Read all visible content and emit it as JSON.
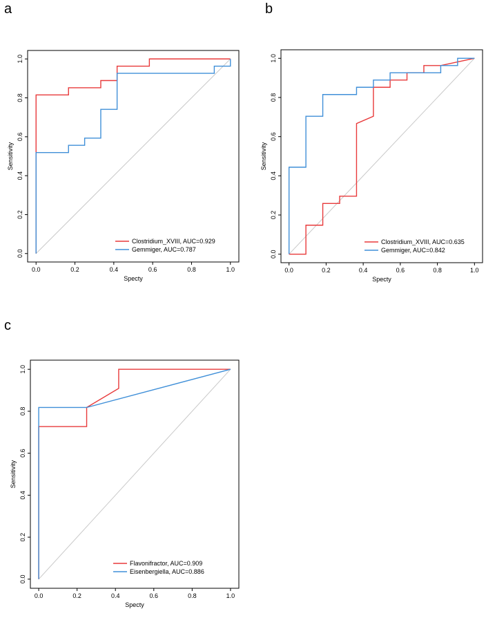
{
  "panels": {
    "a": {
      "letter": "a"
    },
    "b": {
      "letter": "b"
    },
    "c": {
      "letter": "c"
    }
  },
  "chart_data": [
    {
      "id": "a",
      "type": "line",
      "subtype": "roc",
      "xlabel": "Specty",
      "ylabel": "Sensitivity",
      "xlim": [
        0,
        1
      ],
      "ylim": [
        0,
        1
      ],
      "xticks": [
        "0.0",
        "0.2",
        "0.4",
        "0.6",
        "0.8",
        "1.0"
      ],
      "yticks": [
        "0.0",
        "0.2",
        "0.4",
        "0.6",
        "0.8",
        "1.0"
      ],
      "legend_position": "bottom-right",
      "diagonal": true,
      "series": [
        {
          "name": "Clostridium_XVIII, AUC=0.929",
          "color": "#e8393a",
          "points": [
            [
              0,
              0
            ],
            [
              0,
              0.815
            ],
            [
              0.167,
              0.815
            ],
            [
              0.167,
              0.852
            ],
            [
              0.333,
              0.852
            ],
            [
              0.333,
              0.889
            ],
            [
              0.417,
              0.889
            ],
            [
              0.417,
              0.963
            ],
            [
              0.583,
              0.963
            ],
            [
              0.583,
              1.0
            ],
            [
              1.0,
              1.0
            ]
          ]
        },
        {
          "name": "Gemmiger, AUC=0.787",
          "color": "#3f8fd8",
          "points": [
            [
              0,
              0
            ],
            [
              0,
              0.519
            ],
            [
              0.167,
              0.519
            ],
            [
              0.167,
              0.556
            ],
            [
              0.25,
              0.556
            ],
            [
              0.25,
              0.593
            ],
            [
              0.333,
              0.593
            ],
            [
              0.333,
              0.741
            ],
            [
              0.417,
              0.741
            ],
            [
              0.417,
              0.926
            ],
            [
              0.917,
              0.926
            ],
            [
              0.917,
              0.963
            ],
            [
              1.0,
              0.963
            ],
            [
              1.0,
              1.0
            ]
          ]
        }
      ]
    },
    {
      "id": "b",
      "type": "line",
      "subtype": "roc",
      "xlabel": "Specty",
      "ylabel": "Sensitivity",
      "xlim": [
        0,
        1
      ],
      "ylim": [
        0,
        1
      ],
      "xticks": [
        "0.0",
        "0.2",
        "0.4",
        "0.6",
        "0.8",
        "1.0"
      ],
      "yticks": [
        "0.0",
        "0.2",
        "0.4",
        "0.6",
        "0.8",
        "1.0"
      ],
      "legend_position": "bottom-right",
      "diagonal": true,
      "series": [
        {
          "name": "Clostridium_XVIII, AUC=0.635",
          "color": "#e8393a",
          "points": [
            [
              0,
              0
            ],
            [
              0.091,
              0
            ],
            [
              0.091,
              0.148
            ],
            [
              0.182,
              0.148
            ],
            [
              0.182,
              0.259
            ],
            [
              0.273,
              0.259
            ],
            [
              0.273,
              0.296
            ],
            [
              0.364,
              0.296
            ],
            [
              0.364,
              0.667
            ],
            [
              0.455,
              0.704
            ],
            [
              0.455,
              0.852
            ],
            [
              0.545,
              0.852
            ],
            [
              0.545,
              0.889
            ],
            [
              0.636,
              0.889
            ],
            [
              0.636,
              0.926
            ],
            [
              0.727,
              0.926
            ],
            [
              0.727,
              0.963
            ],
            [
              0.818,
              0.963
            ],
            [
              1.0,
              1.0
            ]
          ]
        },
        {
          "name": "Gemmiger, AUC=0.842",
          "color": "#3f8fd8",
          "points": [
            [
              0,
              0
            ],
            [
              0,
              0.444
            ],
            [
              0.091,
              0.444
            ],
            [
              0.091,
              0.704
            ],
            [
              0.182,
              0.704
            ],
            [
              0.182,
              0.815
            ],
            [
              0.364,
              0.815
            ],
            [
              0.364,
              0.852
            ],
            [
              0.455,
              0.852
            ],
            [
              0.455,
              0.889
            ],
            [
              0.545,
              0.889
            ],
            [
              0.545,
              0.926
            ],
            [
              0.818,
              0.926
            ],
            [
              0.818,
              0.963
            ],
            [
              0.909,
              0.963
            ],
            [
              0.909,
              1.0
            ],
            [
              1.0,
              1.0
            ]
          ]
        }
      ]
    },
    {
      "id": "c",
      "type": "line",
      "subtype": "roc",
      "xlabel": "Specty",
      "ylabel": "Sensitivity",
      "xlim": [
        0,
        1
      ],
      "ylim": [
        0,
        1
      ],
      "xticks": [
        "0.0",
        "0.2",
        "0.4",
        "0.6",
        "0.8",
        "1.0"
      ],
      "yticks": [
        "0.0",
        "0.2",
        "0.4",
        "0.6",
        "0.8",
        "1.0"
      ],
      "legend_position": "bottom-right",
      "diagonal": true,
      "series": [
        {
          "name": "Flavonifractor, AUC=0.909",
          "color": "#e8393a",
          "points": [
            [
              0,
              0
            ],
            [
              0,
              0.727
            ],
            [
              0.25,
              0.727
            ],
            [
              0.25,
              0.818
            ],
            [
              0.417,
              0.909
            ],
            [
              0.417,
              1.0
            ],
            [
              1.0,
              1.0
            ]
          ]
        },
        {
          "name": "Eisenbergiella, AUC=0.886",
          "color": "#3f8fd8",
          "points": [
            [
              0,
              0
            ],
            [
              0,
              0.818
            ],
            [
              0.25,
              0.818
            ],
            [
              1.0,
              1.0
            ]
          ]
        }
      ]
    }
  ]
}
